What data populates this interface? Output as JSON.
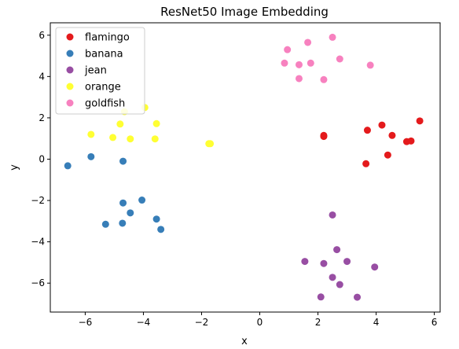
{
  "chart_data": {
    "type": "scatter",
    "title": "ResNet50 Image Embedding",
    "xlabel": "x",
    "ylabel": "y",
    "xlim": [
      -7.2,
      6.2
    ],
    "ylim": [
      -7.4,
      6.6
    ],
    "xticks": [
      -6,
      -4,
      -2,
      0,
      2,
      4,
      6
    ],
    "yticks": [
      -6,
      -4,
      -2,
      0,
      2,
      4,
      6
    ],
    "grid": false,
    "legend_position": "top-left",
    "series": [
      {
        "name": "flamingo",
        "color": "#e41a1c",
        "points": [
          [
            2.2,
            1.1
          ],
          [
            2.2,
            1.15
          ],
          [
            3.7,
            1.4
          ],
          [
            4.2,
            1.65
          ],
          [
            4.55,
            1.15
          ],
          [
            5.05,
            0.85
          ],
          [
            5.2,
            0.88
          ],
          [
            5.5,
            1.85
          ],
          [
            4.4,
            0.2
          ],
          [
            3.65,
            -0.22
          ]
        ]
      },
      {
        "name": "banana",
        "color": "#377eb8",
        "points": [
          [
            -6.6,
            -0.32
          ],
          [
            -5.8,
            0.12
          ],
          [
            -4.7,
            -0.1
          ],
          [
            -4.7,
            -2.12
          ],
          [
            -4.05,
            -1.98
          ],
          [
            -4.45,
            -2.6
          ],
          [
            -3.55,
            -2.9
          ],
          [
            -4.72,
            -3.1
          ],
          [
            -5.3,
            -3.15
          ],
          [
            -3.4,
            -3.4
          ]
        ]
      },
      {
        "name": "jean",
        "color": "#984ea3",
        "points": [
          [
            2.5,
            -2.7
          ],
          [
            2.65,
            -4.38
          ],
          [
            1.55,
            -4.95
          ],
          [
            2.2,
            -5.05
          ],
          [
            3.0,
            -4.95
          ],
          [
            3.95,
            -5.22
          ],
          [
            2.5,
            -5.72
          ],
          [
            2.75,
            -6.07
          ],
          [
            2.1,
            -6.67
          ],
          [
            3.35,
            -6.68
          ]
        ]
      },
      {
        "name": "orange",
        "color": "#ffff33",
        "points": [
          [
            -4.65,
            2.3
          ],
          [
            -3.95,
            2.5
          ],
          [
            -4.8,
            1.7
          ],
          [
            -3.55,
            1.72
          ],
          [
            -5.8,
            1.2
          ],
          [
            -5.05,
            1.05
          ],
          [
            -4.45,
            0.98
          ],
          [
            -3.6,
            0.98
          ],
          [
            -1.75,
            0.75
          ],
          [
            -1.7,
            0.75
          ]
        ]
      },
      {
        "name": "goldfish",
        "color": "#f781bf",
        "points": [
          [
            2.5,
            5.9
          ],
          [
            1.65,
            5.65
          ],
          [
            0.95,
            5.3
          ],
          [
            2.75,
            4.85
          ],
          [
            0.85,
            4.65
          ],
          [
            1.35,
            4.57
          ],
          [
            1.75,
            4.65
          ],
          [
            3.8,
            4.55
          ],
          [
            1.35,
            3.9
          ],
          [
            2.2,
            3.85
          ]
        ]
      }
    ]
  }
}
